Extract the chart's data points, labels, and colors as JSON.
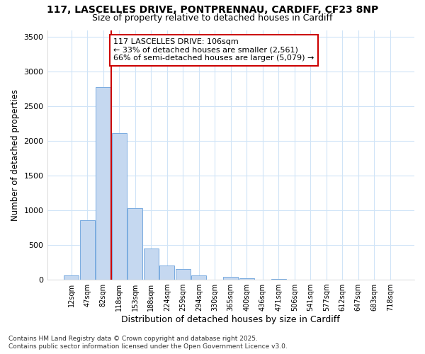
{
  "title_line1": "117, LASCELLES DRIVE, PONTPRENNAU, CARDIFF, CF23 8NP",
  "title_line2": "Size of property relative to detached houses in Cardiff",
  "xlabel": "Distribution of detached houses by size in Cardiff",
  "ylabel": "Number of detached properties",
  "categories": [
    "12sqm",
    "47sqm",
    "82sqm",
    "118sqm",
    "153sqm",
    "188sqm",
    "224sqm",
    "259sqm",
    "294sqm",
    "330sqm",
    "365sqm",
    "400sqm",
    "436sqm",
    "471sqm",
    "506sqm",
    "541sqm",
    "577sqm",
    "612sqm",
    "647sqm",
    "683sqm",
    "718sqm"
  ],
  "values": [
    55,
    850,
    2780,
    2110,
    1030,
    450,
    205,
    145,
    60,
    0,
    35,
    20,
    0,
    10,
    0,
    0,
    0,
    0,
    0,
    0,
    0
  ],
  "bar_color": "#c5d8f0",
  "bar_edge_color": "#7aace0",
  "vline_color": "#cc0000",
  "vline_pos": 2.5,
  "annotation_title": "117 LASCELLES DRIVE: 106sqm",
  "annotation_line2": "← 33% of detached houses are smaller (2,561)",
  "annotation_line3": "66% of semi-detached houses are larger (5,079) →",
  "annotation_box_color": "#cc0000",
  "ylim": [
    0,
    3600
  ],
  "yticks": [
    0,
    500,
    1000,
    1500,
    2000,
    2500,
    3000,
    3500
  ],
  "bg_color": "#ffffff",
  "grid_color": "#d0e4f7",
  "footer_line1": "Contains HM Land Registry data © Crown copyright and database right 2025.",
  "footer_line2": "Contains public sector information licensed under the Open Government Licence v3.0."
}
